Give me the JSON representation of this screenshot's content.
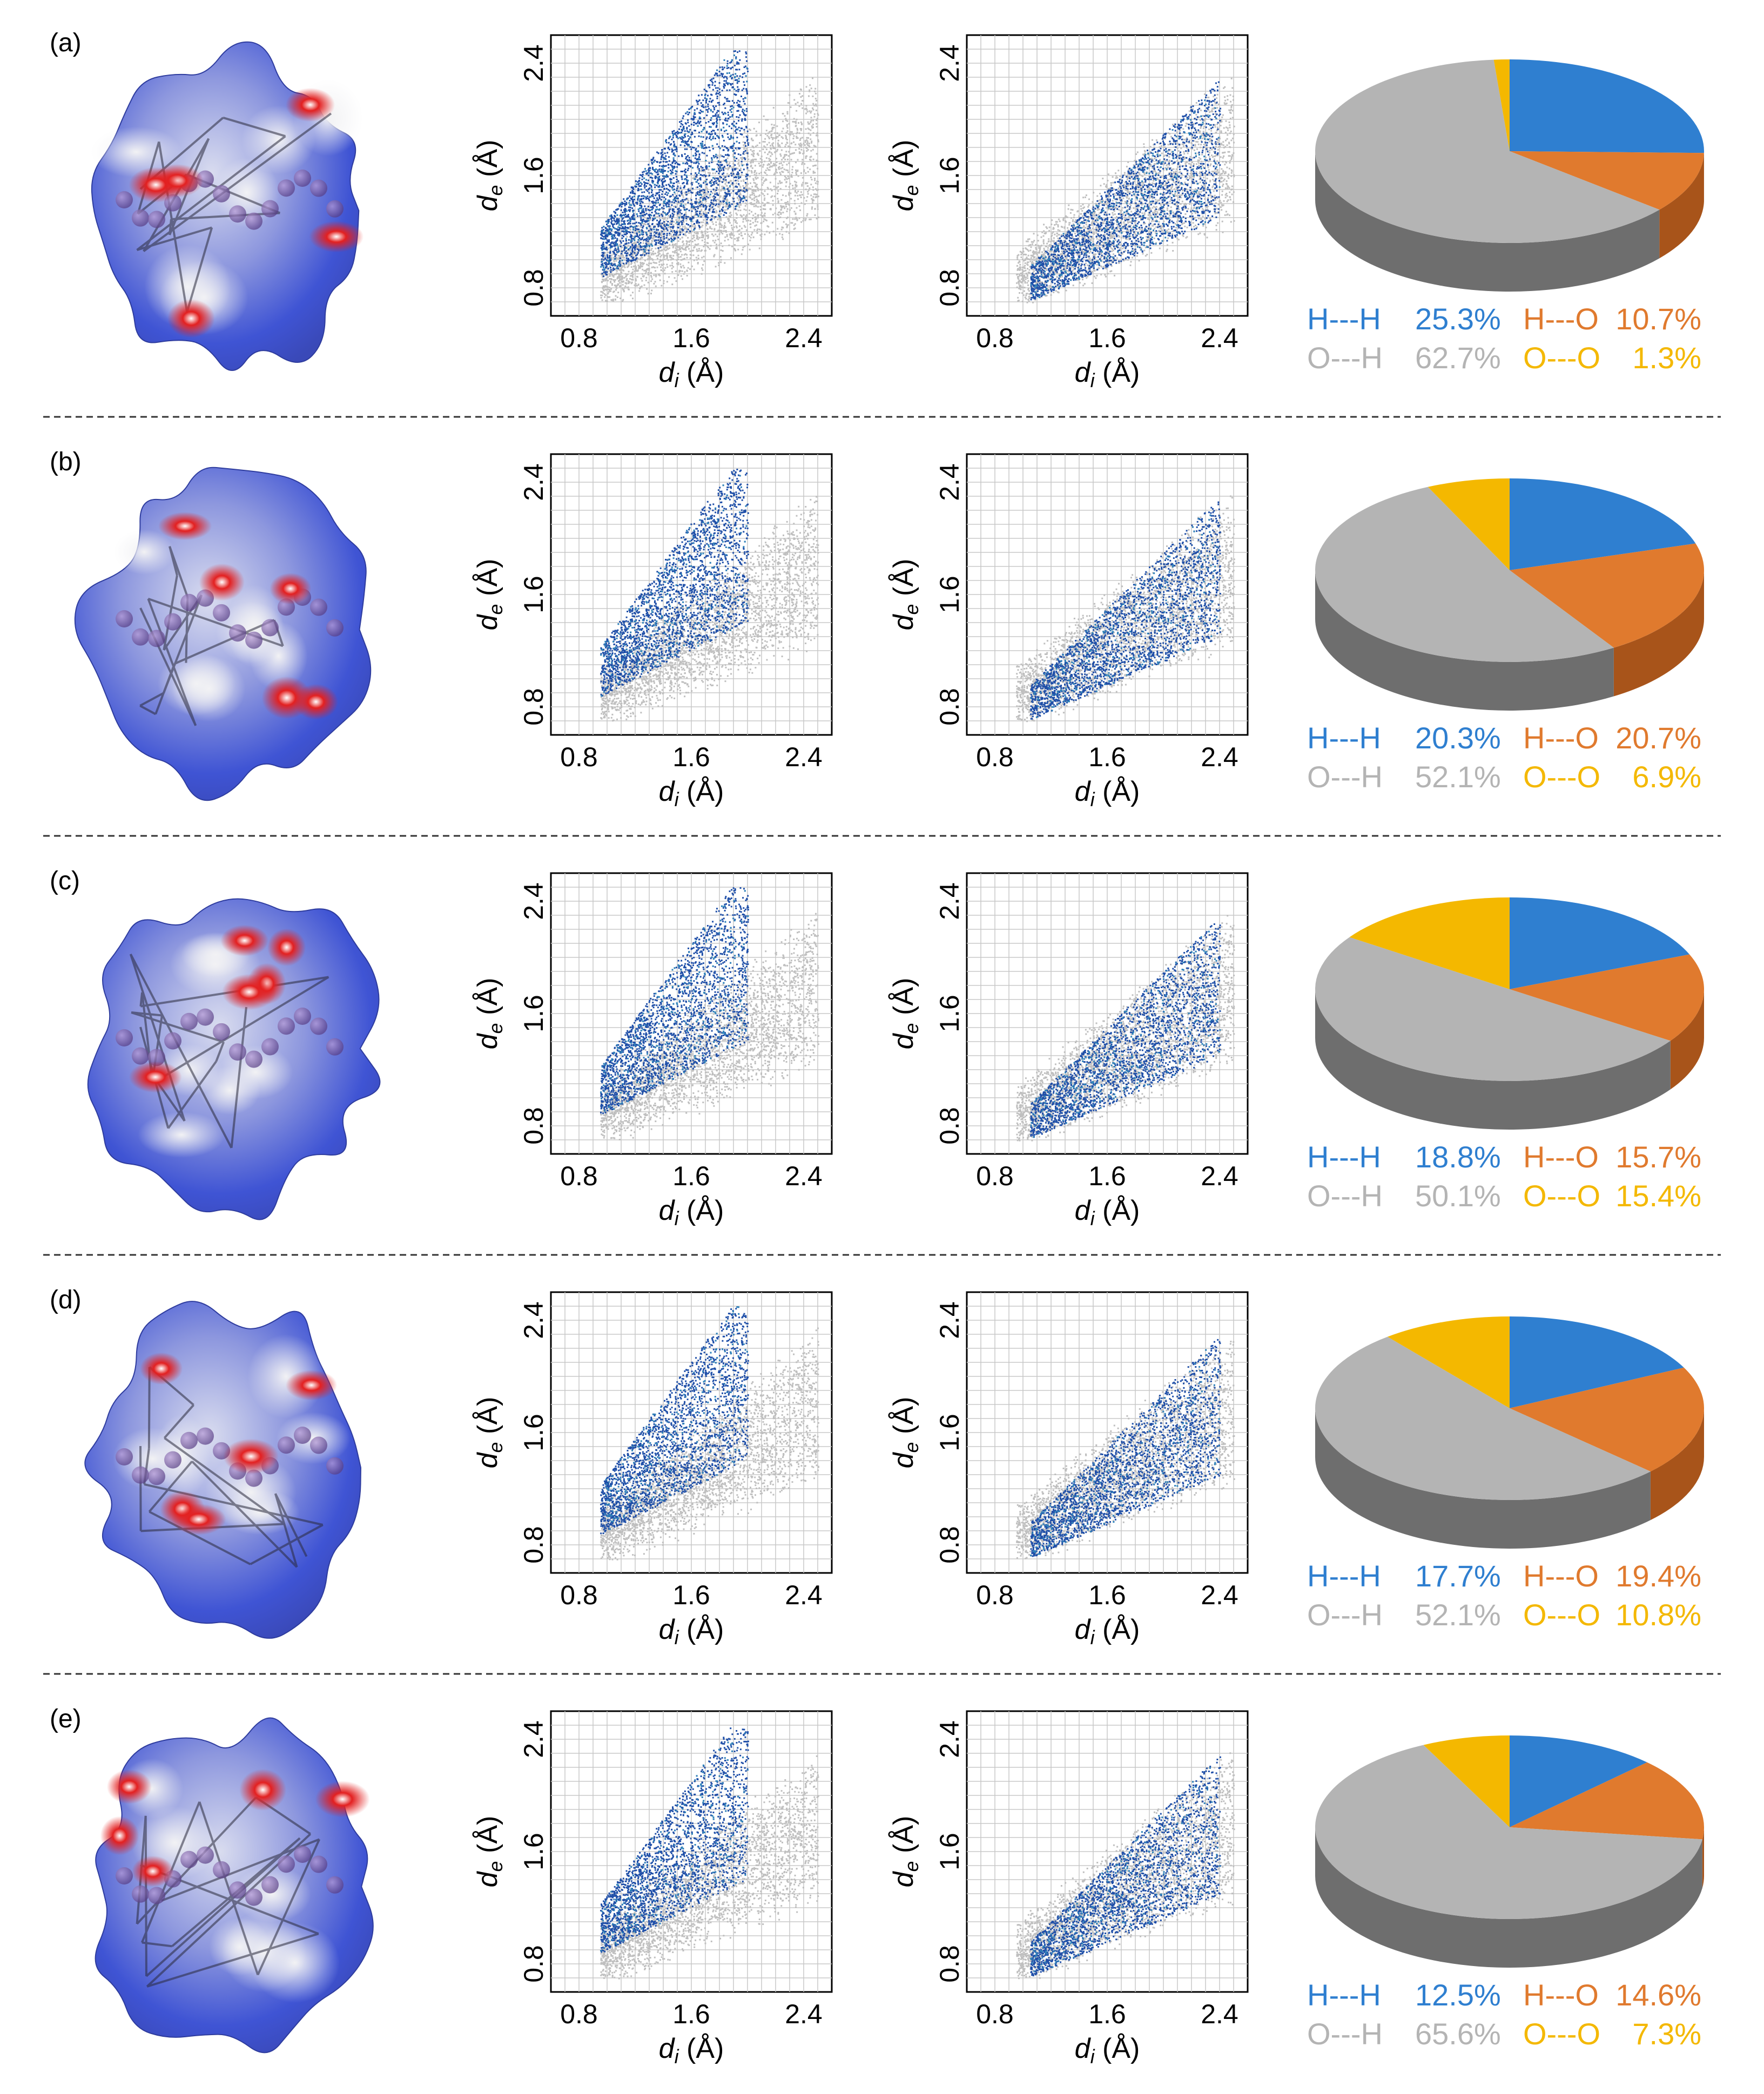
{
  "axes": {
    "x_label_sym": "d",
    "x_label_sub": "i",
    "x_label_unit": " (Å)",
    "y_label_sym": "d",
    "y_label_sub": "e",
    "y_label_unit": " (Å)",
    "ticks": [
      "0.8",
      "1.6",
      "2.4"
    ]
  },
  "colors": {
    "H---H": "#2f7fd0",
    "H---O": "#e07a2e",
    "O---H": "#b4b4b4",
    "O---O": "#f4b800",
    "surface_blue": "#3f54d4",
    "surface_red": "#e32020",
    "fingerprint_blue": "#1f4fa8",
    "fingerprint_grey": "#bfbfbf"
  },
  "chart_data": [
    {
      "type": "pie",
      "panel": "(a)",
      "categories": [
        "H---H",
        "H---O",
        "O---H",
        "O---O"
      ],
      "values": [
        25.3,
        10.7,
        62.7,
        1.3
      ],
      "labels": [
        "25.3%",
        "10.7%",
        "62.7%",
        "1.3%"
      ],
      "fingerprint_axes": {
        "xlim": [
          0.6,
          2.6
        ],
        "ylim": [
          0.6,
          2.6
        ],
        "xlabel": "di (Å)",
        "ylabel": "de (Å)"
      }
    },
    {
      "type": "pie",
      "panel": "(b)",
      "categories": [
        "H---H",
        "H---O",
        "O---H",
        "O---O"
      ],
      "values": [
        20.3,
        20.7,
        52.1,
        6.9
      ],
      "labels": [
        "20.3%",
        "20.7%",
        "52.1%",
        "6.9%"
      ],
      "fingerprint_axes": {
        "xlim": [
          0.6,
          2.6
        ],
        "ylim": [
          0.6,
          2.6
        ],
        "xlabel": "di (Å)",
        "ylabel": "de (Å)"
      }
    },
    {
      "type": "pie",
      "panel": "(c)",
      "categories": [
        "H---H",
        "H---O",
        "O---H",
        "O---O"
      ],
      "values": [
        18.8,
        15.7,
        50.1,
        15.4
      ],
      "labels": [
        "18.8%",
        "15.7%",
        "50.1%",
        "15.4%"
      ],
      "fingerprint_axes": {
        "xlim": [
          0.6,
          2.6
        ],
        "ylim": [
          0.6,
          2.6
        ],
        "xlabel": "di (Å)",
        "ylabel": "de (Å)"
      }
    },
    {
      "type": "pie",
      "panel": "(d)",
      "categories": [
        "H---H",
        "H---O",
        "O---H",
        "O---O"
      ],
      "values": [
        17.7,
        19.4,
        52.1,
        10.8
      ],
      "labels": [
        "17.7%",
        "19.4%",
        "52.1%",
        "10.8%"
      ],
      "fingerprint_axes": {
        "xlim": [
          0.6,
          2.6
        ],
        "ylim": [
          0.6,
          2.6
        ],
        "xlabel": "di (Å)",
        "ylabel": "de (Å)"
      }
    },
    {
      "type": "pie",
      "panel": "(e)",
      "categories": [
        "H---H",
        "H---O",
        "O---H",
        "O---O"
      ],
      "values": [
        12.5,
        14.6,
        65.6,
        7.3
      ],
      "labels": [
        "12.5%",
        "14.6%",
        "65.6%",
        "7.3%"
      ],
      "fingerprint_axes": {
        "xlim": [
          0.6,
          2.6
        ],
        "ylim": [
          0.6,
          2.6
        ],
        "xlabel": "di (Å)",
        "ylabel": "de (Å)"
      }
    }
  ]
}
